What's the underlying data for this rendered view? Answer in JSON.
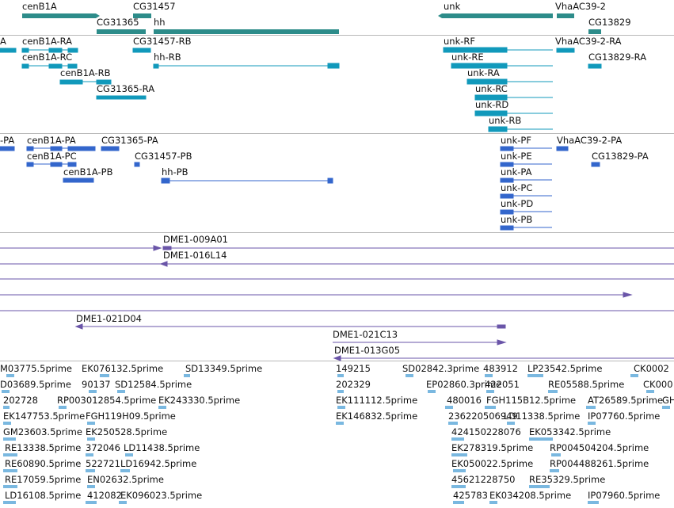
{
  "colors": {
    "gene": "#2d8c8a",
    "transcript": "#1199bb",
    "protein": "#3366cc",
    "clone": "#6a55a8",
    "est": "#7ab8e0",
    "separator": "#b8b8b8"
  },
  "tracks": {
    "genes": {
      "items": [
        {
          "label": "cenB1A"
        },
        {
          "label": "CG31457"
        },
        {
          "label": "CG31365"
        },
        {
          "label": "hh"
        },
        {
          "label": "unk"
        },
        {
          "label": "VhaAC39-2"
        },
        {
          "label": "CG13829"
        }
      ]
    },
    "transcripts": {
      "items": [
        {
          "label": "A"
        },
        {
          "label": "cenB1A-RA"
        },
        {
          "label": "CG31457-RB"
        },
        {
          "label": "cenB1A-RC"
        },
        {
          "label": "hh-RB"
        },
        {
          "label": "cenB1A-RB"
        },
        {
          "label": "CG31365-RA"
        },
        {
          "label": "unk-RF"
        },
        {
          "label": "VhaAC39-2-RA"
        },
        {
          "label": "unk-RE"
        },
        {
          "label": "CG13829-RA"
        },
        {
          "label": "unk-RA"
        },
        {
          "label": "unk-RC"
        },
        {
          "label": "unk-RD"
        },
        {
          "label": "unk-RB"
        }
      ]
    },
    "proteins": {
      "items": [
        {
          "label": "-PA"
        },
        {
          "label": "cenB1A-PA"
        },
        {
          "label": "CG31365-PA"
        },
        {
          "label": "cenB1A-PC"
        },
        {
          "label": "CG31457-PB"
        },
        {
          "label": "cenB1A-PB"
        },
        {
          "label": "hh-PB"
        },
        {
          "label": "unk-PF"
        },
        {
          "label": "VhaAC39-2-PA"
        },
        {
          "label": "unk-PE"
        },
        {
          "label": "CG13829-PA"
        },
        {
          "label": "unk-PA"
        },
        {
          "label": "unk-PC"
        },
        {
          "label": "unk-PD"
        },
        {
          "label": "unk-PB"
        }
      ]
    },
    "clones": {
      "items": [
        {
          "label": "DME1-009A01"
        },
        {
          "label": "DME1-016L14"
        },
        {
          "label": "DME1-021D04"
        },
        {
          "label": "DME1-021C13"
        },
        {
          "label": "DME1-013G05"
        }
      ]
    },
    "ests": {
      "items": [
        {
          "label": "M03775.5prime"
        },
        {
          "label": "EK076132.5prime"
        },
        {
          "label": "SD13349.5prime"
        },
        {
          "label": "149215"
        },
        {
          "label": "SD02842.3prime"
        },
        {
          "label": "483912"
        },
        {
          "label": "LP23542.5prime"
        },
        {
          "label": "CK0002"
        },
        {
          "label": "D03689.5prime"
        },
        {
          "label": "90137"
        },
        {
          "label": "SD12584.5prime"
        },
        {
          "label": "202329"
        },
        {
          "label": "EP02860.3prime"
        },
        {
          "label": "422051"
        },
        {
          "label": "RE05588.5prime"
        },
        {
          "label": "CK000"
        },
        {
          "label": "202728"
        },
        {
          "label": "RP003012854.5prime"
        },
        {
          "label": "EK243330.5prime"
        },
        {
          "label": "EK111112.5prime"
        },
        {
          "label": "480016"
        },
        {
          "label": "FGH115B12.5prime"
        },
        {
          "label": "AT26589.5prime"
        },
        {
          "label": "GH"
        },
        {
          "label": "EK147753.5prime"
        },
        {
          "label": "FGH119H09.5prime"
        },
        {
          "label": "EK146832.5prime"
        },
        {
          "label": "236220506949"
        },
        {
          "label": "LD11338.5prime"
        },
        {
          "label": "IP07760.5prime"
        },
        {
          "label": "GM23603.5prime"
        },
        {
          "label": "EK250528.5prime"
        },
        {
          "label": "424150228076"
        },
        {
          "label": "EK053342.5prime"
        },
        {
          "label": "RE13338.5prime"
        },
        {
          "label": "372046"
        },
        {
          "label": "LD11438.5prime"
        },
        {
          "label": "EK278319.5prime"
        },
        {
          "label": "RP004504204.5prime"
        },
        {
          "label": "RE60890.5prime"
        },
        {
          "label": "522721"
        },
        {
          "label": "LD16942.5prime"
        },
        {
          "label": "EK050022.5prime"
        },
        {
          "label": "RP004488261.5prime"
        },
        {
          "label": "RE17059.5prime"
        },
        {
          "label": "EN02632.5prime"
        },
        {
          "label": "45621228750"
        },
        {
          "label": "RE35329.5prime"
        },
        {
          "label": "LD16108.5prime"
        },
        {
          "label": "412082"
        },
        {
          "label": "EK096023.5prime"
        },
        {
          "label": "425783"
        },
        {
          "label": "EK034208.5prime"
        },
        {
          "label": "IP07960.5prime"
        }
      ]
    }
  }
}
